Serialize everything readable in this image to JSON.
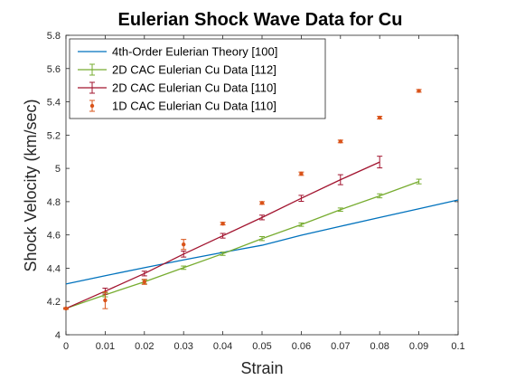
{
  "chart_data": {
    "type": "line",
    "title": "Eulerian Shock Wave Data for Cu",
    "xlabel": "Strain",
    "ylabel": "Shock Velocity (km/sec)",
    "xlim": [
      0,
      0.1
    ],
    "ylim": [
      4,
      5.8
    ],
    "x_ticks": [
      0,
      0.01,
      0.02,
      0.03,
      0.04,
      0.05,
      0.06,
      0.07,
      0.08,
      0.09,
      0.1
    ],
    "y_ticks": [
      4,
      4.2,
      4.4,
      4.6,
      4.8,
      5,
      5.2,
      5.4,
      5.6,
      5.8
    ],
    "grid": false,
    "legend_position": "top-left",
    "series": [
      {
        "name": "4th-Order Eulerian Theory [100]",
        "color": "#0072BD",
        "style": "line",
        "x": [
          0,
          0.01,
          0.02,
          0.03,
          0.04,
          0.05,
          0.06,
          0.07,
          0.08,
          0.09,
          0.1
        ],
        "y": [
          4.305,
          4.355,
          4.403,
          4.45,
          4.495,
          4.538,
          4.598,
          4.652,
          4.705,
          4.757,
          4.81
        ]
      },
      {
        "name": "2D CAC Eulerian Cu Data [112]",
        "color": "#77AC30",
        "style": "errorbar-line",
        "x": [
          0,
          0.01,
          0.02,
          0.03,
          0.04,
          0.05,
          0.06,
          0.07,
          0.08,
          0.09
        ],
        "y": [
          4.158,
          4.24,
          4.318,
          4.403,
          4.487,
          4.578,
          4.662,
          4.752,
          4.835,
          4.921
        ],
        "err": [
          0.004,
          0.012,
          0.012,
          0.01,
          0.01,
          0.012,
          0.01,
          0.01,
          0.012,
          0.014
        ]
      },
      {
        "name": "2D CAC Eulerian Cu Data [110]",
        "color": "#A2142F",
        "style": "errorbar-line",
        "x": [
          0,
          0.01,
          0.02,
          0.03,
          0.04,
          0.05,
          0.06,
          0.07,
          0.08
        ],
        "y": [
          4.158,
          4.262,
          4.368,
          4.485,
          4.595,
          4.705,
          4.82,
          4.932,
          5.038
        ],
        "err": [
          0.004,
          0.018,
          0.014,
          0.018,
          0.014,
          0.014,
          0.018,
          0.03,
          0.035
        ]
      },
      {
        "name": "1D CAC Eulerian Cu Data [110]",
        "color": "#D95319",
        "style": "errorbar-marker",
        "x": [
          0,
          0.01,
          0.02,
          0.03,
          0.04,
          0.05,
          0.06,
          0.07,
          0.08,
          0.09
        ],
        "y": [
          4.158,
          4.207,
          4.318,
          4.543,
          4.668,
          4.792,
          4.968,
          5.162,
          5.305,
          5.466
        ],
        "err": [
          0.004,
          0.05,
          0.015,
          0.03,
          0.008,
          0.008,
          0.01,
          0.008,
          0.008,
          0.008
        ]
      }
    ]
  }
}
